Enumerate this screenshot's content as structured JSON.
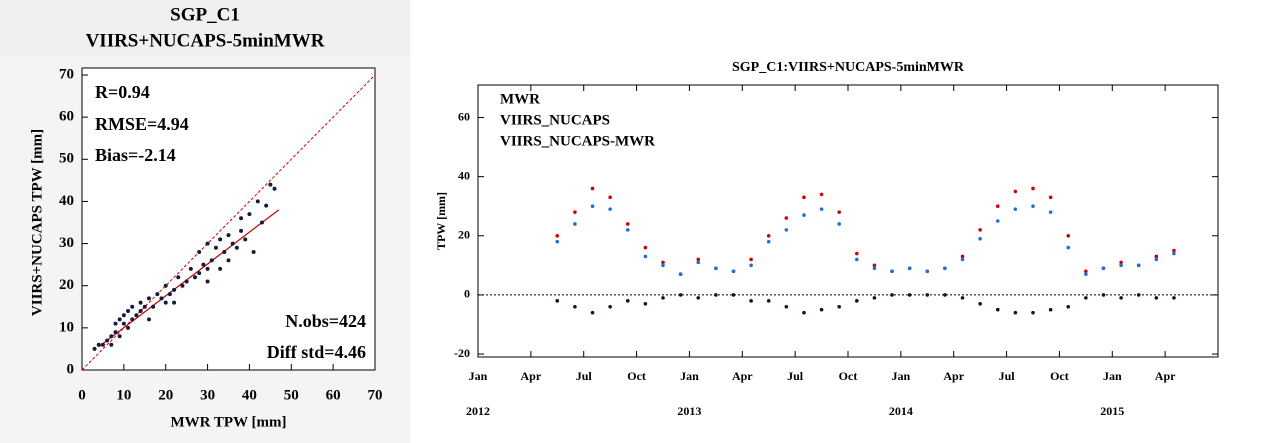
{
  "chart_data": [
    {
      "type": "scatter",
      "title": [
        "SGP_C1",
        "VIIRS+NUCAPS-5minMWR"
      ],
      "x_label": "MWR TPW [mm]",
      "y_label": "VIIRS+NUCAPS TPW [mm]",
      "xlim": [
        0,
        70
      ],
      "ylim": [
        0,
        70
      ],
      "xticks": [
        0,
        10,
        20,
        30,
        40,
        50,
        60,
        70
      ],
      "yticks": [
        0,
        10,
        20,
        30,
        40,
        50,
        60,
        70
      ],
      "annotations": [
        "R=0.94",
        "RMSE=4.94",
        "Bias=-2.14",
        "N.obs=424",
        "Diff std=4.46"
      ],
      "color": "#1a1a3a",
      "identity_line": true,
      "fit_line": {
        "x": [
          4,
          47
        ],
        "y": [
          5.5,
          38
        ],
        "color": "#c00000"
      },
      "x": [
        5,
        6,
        7,
        7,
        8,
        8,
        9,
        9,
        10,
        10,
        11,
        11,
        12,
        12,
        13,
        14,
        14,
        15,
        16,
        17,
        18,
        19,
        20,
        20,
        21,
        22,
        23,
        24,
        25,
        26,
        27,
        28,
        28,
        29,
        30,
        30,
        31,
        32,
        33,
        33,
        34,
        35,
        35,
        36,
        37,
        38,
        38,
        39,
        40,
        41,
        42,
        43,
        44,
        45,
        46,
        3,
        4,
        16,
        22,
        30
      ],
      "y": [
        6,
        7,
        8,
        6,
        9,
        11,
        8,
        12,
        11,
        13,
        10,
        14,
        12,
        15,
        13,
        14,
        16,
        15,
        17,
        15,
        18,
        17,
        16,
        20,
        18,
        19,
        22,
        20,
        21,
        24,
        22,
        23,
        28,
        25,
        24,
        30,
        26,
        29,
        31,
        24,
        28,
        32,
        26,
        30,
        29,
        33,
        36,
        31,
        37,
        28,
        40,
        35,
        39,
        44,
        43,
        5,
        6,
        12,
        16,
        21
      ]
    },
    {
      "type": "timeseries",
      "title": "SGP_C1:VIIRS+NUCAPS-5minMWR",
      "y_label": "TPW [mm]",
      "xlim": [
        "2012-01",
        "2015-06"
      ],
      "ylim": [
        -21,
        71
      ],
      "yticks": [
        -20,
        0,
        20,
        40,
        60
      ],
      "reference_y": 0,
      "xticks": [
        {
          "value": "2012-01",
          "label": "Jan"
        },
        {
          "value": "2012-04",
          "label": "Apr"
        },
        {
          "value": "2012-07",
          "label": "Jul"
        },
        {
          "value": "2012-10",
          "label": "Oct"
        },
        {
          "value": "2013-01",
          "label": "Jan"
        },
        {
          "value": "2013-04",
          "label": "Apr"
        },
        {
          "value": "2013-07",
          "label": "Jul"
        },
        {
          "value": "2013-10",
          "label": "Oct"
        },
        {
          "value": "2014-01",
          "label": "Jan"
        },
        {
          "value": "2014-04",
          "label": "Apr"
        },
        {
          "value": "2014-07",
          "label": "Jul"
        },
        {
          "value": "2014-10",
          "label": "Oct"
        },
        {
          "value": "2015-01",
          "label": "Jan"
        },
        {
          "value": "2015-04",
          "label": "Apr"
        }
      ],
      "year_labels": [
        {
          "value": "2012-01",
          "label": "2012"
        },
        {
          "value": "2013-01",
          "label": "2013"
        },
        {
          "value": "2014-01",
          "label": "2014"
        },
        {
          "value": "2015-01",
          "label": "2015"
        }
      ],
      "x": [
        "2012-05",
        "2012-06",
        "2012-07",
        "2012-08",
        "2012-09",
        "2012-10",
        "2012-11",
        "2012-12",
        "2013-01",
        "2013-02",
        "2013-03",
        "2013-04",
        "2013-05",
        "2013-06",
        "2013-07",
        "2013-08",
        "2013-09",
        "2013-10",
        "2013-11",
        "2013-12",
        "2014-01",
        "2014-02",
        "2014-03",
        "2014-04",
        "2014-05",
        "2014-06",
        "2014-07",
        "2014-08",
        "2014-09",
        "2014-10",
        "2014-11",
        "2014-12",
        "2015-01",
        "2015-02",
        "2015-03",
        "2015-04"
      ],
      "series": [
        {
          "name": "MWR",
          "color": "#d40000",
          "values": [
            20,
            28,
            36,
            33,
            24,
            16,
            11,
            7,
            12,
            9,
            8,
            12,
            20,
            26,
            33,
            34,
            28,
            14,
            10,
            8,
            9,
            8,
            9,
            13,
            22,
            30,
            35,
            36,
            33,
            20,
            8,
            9,
            11,
            10,
            13,
            15
          ]
        },
        {
          "name": "VIIRS_NUCAPS",
          "color": "#1f6fd8",
          "values": [
            18,
            24,
            30,
            29,
            22,
            13,
            10,
            7,
            11,
            9,
            8,
            10,
            18,
            22,
            27,
            29,
            24,
            12,
            9,
            8,
            9,
            8,
            9,
            12,
            19,
            25,
            29,
            30,
            28,
            16,
            7,
            9,
            10,
            10,
            12,
            14
          ]
        },
        {
          "name": "VIIRS_NUCAPS-MWR",
          "color": "#101030",
          "values": [
            -2,
            -4,
            -6,
            -4,
            -2,
            -3,
            -1,
            0,
            -1,
            0,
            0,
            -2,
            -2,
            -4,
            -6,
            -5,
            -4,
            -2,
            -1,
            0,
            0,
            0,
            0,
            -1,
            -3,
            -5,
            -6,
            -6,
            -5,
            -4,
            -1,
            0,
            -1,
            0,
            -1,
            -1
          ]
        }
      ]
    }
  ]
}
